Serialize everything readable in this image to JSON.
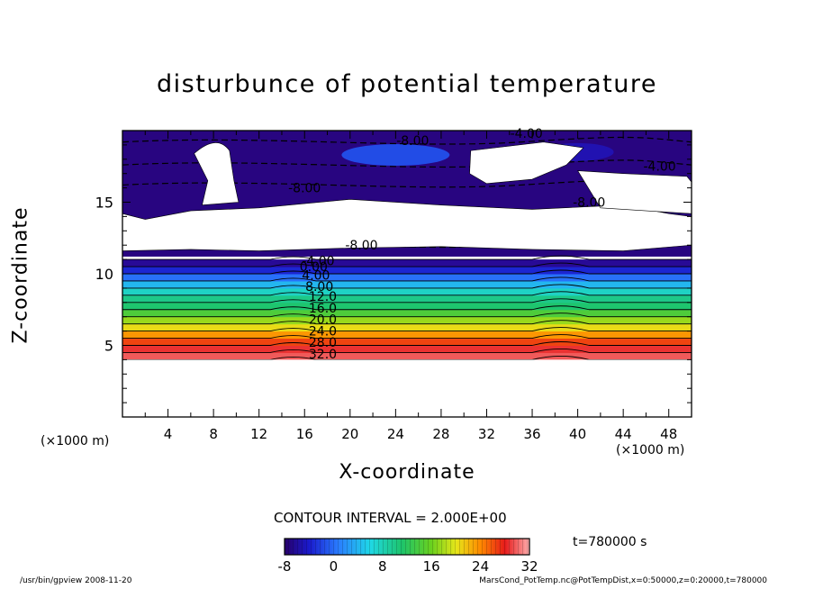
{
  "chart_data": {
    "type": "heatmap",
    "title": "disturbunce of potential temperature",
    "xlabel": "X-coordinate",
    "ylabel": "Z-coordinate",
    "x_unit_label": "(×1000 m)",
    "xlim": [
      0,
      50
    ],
    "ylim": [
      0,
      20
    ],
    "x_ticks": [
      4,
      8,
      12,
      16,
      20,
      24,
      28,
      32,
      36,
      40,
      44,
      48
    ],
    "y_ticks": [
      5,
      10,
      15
    ],
    "contour_labels": [
      "-8.00",
      "-4.00",
      "-4.00",
      "-8.00",
      "-8.00",
      "-8.00",
      "-4.00",
      "0.00",
      "4.00",
      "8.00",
      "12.0",
      "16.0",
      "20.0",
      "24.0",
      "28.0",
      "32.0"
    ],
    "contour_interval_text": "CONTOUR INTERVAL = 2.000E+00",
    "colorbar": {
      "ticks": [
        -8,
        0,
        8,
        16,
        24,
        32
      ],
      "min": -8,
      "max": 32
    },
    "time_text": "t=780000 s",
    "levels_by_height": [
      {
        "z": 4.0,
        "value": 33
      },
      {
        "z": 4.5,
        "value": 31
      },
      {
        "z": 5.0,
        "value": 28
      },
      {
        "z": 5.5,
        "value": 25
      },
      {
        "z": 6.0,
        "value": 22
      },
      {
        "z": 6.5,
        "value": 19
      },
      {
        "z": 7.0,
        "value": 16
      },
      {
        "z": 7.5,
        "value": 13
      },
      {
        "z": 8.0,
        "value": 10
      },
      {
        "z": 8.5,
        "value": 7
      },
      {
        "z": 9.0,
        "value": 4
      },
      {
        "z": 9.5,
        "value": 1
      },
      {
        "z": 10.0,
        "value": -2
      },
      {
        "z": 10.5,
        "value": -5
      },
      {
        "z": 11.0,
        "value": -7
      }
    ]
  },
  "footer": {
    "left": "/usr/bin/gpview   2008-11-20",
    "right": "MarsCond_PotTemp.nc@PotTempDist,x=0:50000,z=0:20000,t=780000"
  }
}
